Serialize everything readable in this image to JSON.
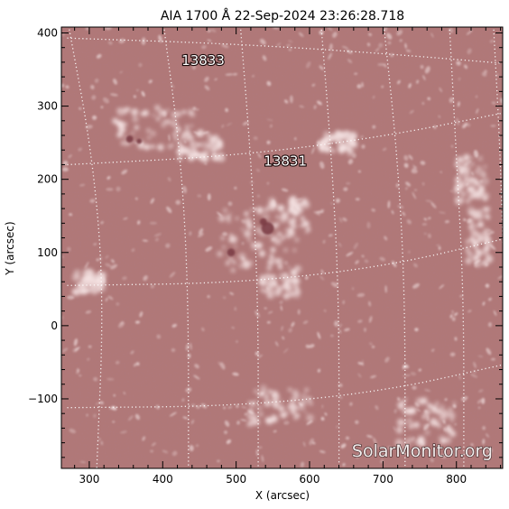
{
  "title": "AIA 1700 Å 22-Sep-2024 23:26:28.718",
  "axes": {
    "xlabel": "X (arcsec)",
    "ylabel": "Y (arcsec)",
    "xlim": [
      262,
      863
    ],
    "ylim": [
      -195,
      408
    ],
    "xticks": [
      "300",
      "400",
      "500",
      "600",
      "700",
      "800"
    ],
    "yticks": [
      "400",
      "300",
      "200",
      "100",
      "0",
      "−100"
    ]
  },
  "regions": [
    {
      "label": "13833",
      "x": 455,
      "y": 356
    },
    {
      "label": "13831",
      "x": 567,
      "y": 219
    }
  ],
  "watermark": "SolarMonitor.org",
  "colors": {
    "background": "#b07878",
    "bright": "#efd6d6",
    "dark": "#7a3c44",
    "grid": "#ffffff"
  }
}
